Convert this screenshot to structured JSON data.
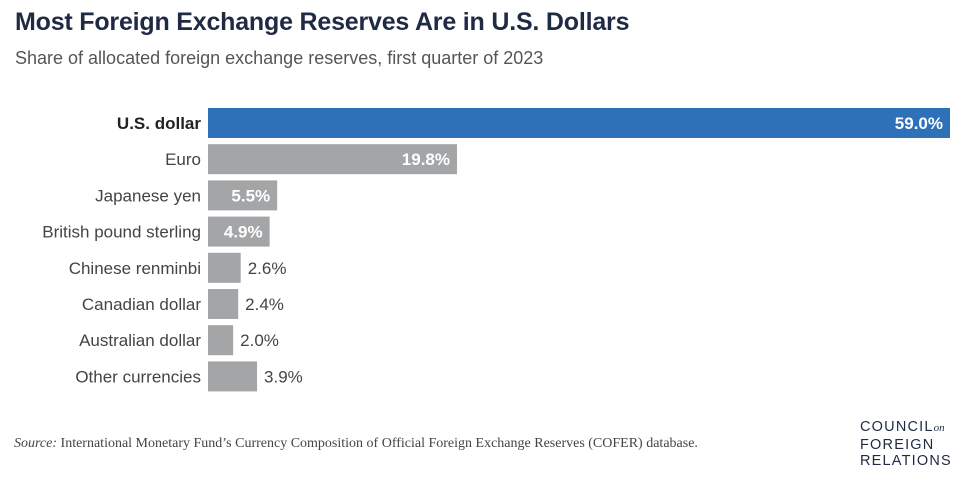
{
  "title": "Most Foreign Exchange Reserves Are in U.S. Dollars",
  "subtitle": "Share of allocated foreign exchange reserves, first quarter of 2023",
  "source": {
    "label": "Source:",
    "text": " International Monetary Fund’s Currency Composition of Official Foreign Exchange Reserves (COFER) database."
  },
  "logo": {
    "line1": "COUNCIL",
    "on": "on",
    "line2": "FOREIGN",
    "line3": "RELATIONS"
  },
  "colors": {
    "highlight": "#2e71b8",
    "bar": "#a3a5a7",
    "title": "#1f2a44"
  },
  "chart_data": {
    "type": "bar",
    "orientation": "horizontal",
    "categories": [
      "U.S. dollar",
      "Euro",
      "Japanese yen",
      "British pound sterling",
      "Chinese renminbi",
      "Canadian dollar",
      "Australian dollar",
      "Other currencies"
    ],
    "values": [
      59.0,
      19.8,
      5.5,
      4.9,
      2.6,
      2.4,
      2.0,
      3.9
    ],
    "labels": [
      "59.0%",
      "19.8%",
      "5.5%",
      "4.9%",
      "2.6%",
      "2.4%",
      "2.0%",
      "3.9%"
    ],
    "highlight_index": 0,
    "xlim": [
      0,
      59
    ],
    "grid": false,
    "xlabel": "",
    "ylabel": ""
  }
}
